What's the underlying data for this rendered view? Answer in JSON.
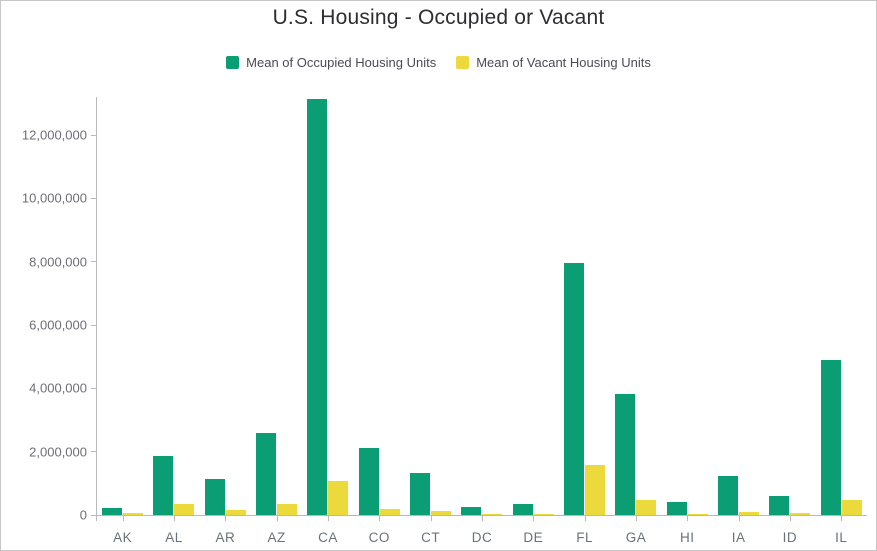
{
  "window": {
    "background": "#ffffff",
    "border_color": "#c6c6c6"
  },
  "chart_data": {
    "type": "bar",
    "title": "U.S. Housing - Occupied or Vacant",
    "xlabel": "",
    "ylabel": "",
    "categories": [
      "AK",
      "AL",
      "AR",
      "AZ",
      "CA",
      "CO",
      "CT",
      "DC",
      "DE",
      "FL",
      "GA",
      "HI",
      "IA",
      "ID",
      "IL"
    ],
    "series": [
      {
        "name": "Mean of Occupied Housing Units",
        "color": "#0b9e74",
        "values": [
          230000,
          1860000,
          1130000,
          2600000,
          13150000,
          2110000,
          1340000,
          240000,
          340000,
          7950000,
          3810000,
          410000,
          1230000,
          600000,
          4890000
        ]
      },
      {
        "name": "Mean of Vacant Housing Units",
        "color": "#ecd93c",
        "values": [
          50000,
          340000,
          160000,
          350000,
          1060000,
          180000,
          120000,
          30000,
          45000,
          1590000,
          460000,
          45000,
          100000,
          60000,
          470000
        ]
      }
    ],
    "ylim": [
      0,
      13200000
    ],
    "yticks": [
      0,
      2000000,
      4000000,
      6000000,
      8000000,
      10000000,
      12000000
    ],
    "ytick_labels": [
      "0",
      "2,000,000",
      "4,000,000",
      "6,000,000",
      "8,000,000",
      "10,000,000",
      "12,000,000"
    ],
    "grid": false,
    "legend_position": "top"
  },
  "style": {
    "axis_line_color": "#b9b9bd",
    "y_label_color": "#6d6d78",
    "x_label_color": "#69727b",
    "title_color": "#2e2e32",
    "legend_text_color": "#4b4b55"
  }
}
